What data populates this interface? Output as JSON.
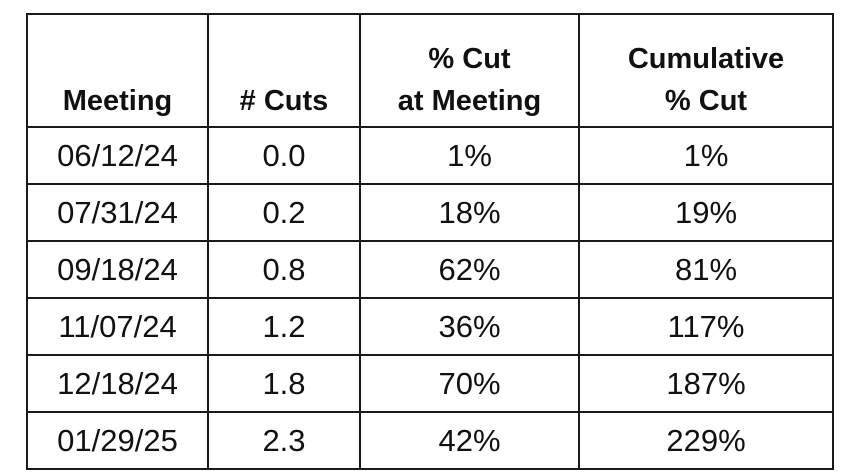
{
  "table": {
    "headers": {
      "meeting": [
        "Meeting"
      ],
      "cuts": [
        "# Cuts"
      ],
      "pct_cut": [
        "% Cut",
        "at Meeting"
      ],
      "cumulative": [
        "Cumulative",
        "% Cut"
      ]
    },
    "rows": [
      {
        "meeting": "06/12/24",
        "cuts": "0.0",
        "pct_cut": "1%",
        "cumulative": "1%"
      },
      {
        "meeting": "07/31/24",
        "cuts": "0.2",
        "pct_cut": "18%",
        "cumulative": "19%"
      },
      {
        "meeting": "09/18/24",
        "cuts": "0.8",
        "pct_cut": "62%",
        "cumulative": "81%"
      },
      {
        "meeting": "11/07/24",
        "cuts": "1.2",
        "pct_cut": "36%",
        "cumulative": "117%"
      },
      {
        "meeting": "12/18/24",
        "cuts": "1.8",
        "pct_cut": "70%",
        "cumulative": "187%"
      },
      {
        "meeting": "01/29/25",
        "cuts": "2.3",
        "pct_cut": "42%",
        "cumulative": "229%"
      }
    ]
  }
}
